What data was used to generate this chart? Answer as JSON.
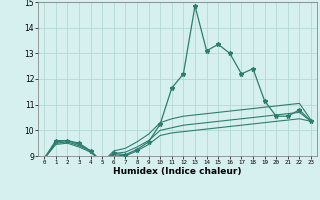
{
  "title": "",
  "xlabel": "Humidex (Indice chaleur)",
  "x_values": [
    0,
    1,
    2,
    3,
    4,
    5,
    6,
    7,
    8,
    9,
    10,
    11,
    12,
    13,
    14,
    15,
    16,
    17,
    18,
    19,
    20,
    21,
    22,
    23
  ],
  "line1": [
    8.9,
    9.6,
    9.6,
    9.5,
    9.2,
    8.75,
    9.1,
    9.05,
    9.25,
    9.55,
    10.25,
    11.65,
    12.2,
    14.85,
    13.1,
    13.35,
    13.0,
    12.2,
    12.4,
    11.15,
    10.55,
    10.55,
    10.8,
    10.35
  ],
  "line2": [
    8.9,
    9.55,
    9.6,
    9.45,
    9.2,
    8.75,
    9.2,
    9.3,
    9.55,
    9.85,
    10.3,
    10.45,
    10.55,
    10.6,
    10.65,
    10.7,
    10.75,
    10.8,
    10.85,
    10.9,
    10.95,
    11.0,
    11.05,
    10.4
  ],
  "line3": [
    8.9,
    9.5,
    9.55,
    9.4,
    9.2,
    8.75,
    9.1,
    9.15,
    9.35,
    9.6,
    10.0,
    10.1,
    10.2,
    10.25,
    10.3,
    10.35,
    10.4,
    10.45,
    10.5,
    10.55,
    10.6,
    10.65,
    10.7,
    10.35
  ],
  "line4": [
    8.9,
    9.45,
    9.5,
    9.35,
    9.15,
    8.75,
    9.05,
    9.0,
    9.2,
    9.45,
    9.8,
    9.9,
    9.95,
    10.0,
    10.05,
    10.1,
    10.15,
    10.2,
    10.25,
    10.3,
    10.35,
    10.4,
    10.45,
    10.35
  ],
  "line_color": "#2d7d6e",
  "bg_color": "#d6f0ef",
  "grid_color": "#afd4d0",
  "ylim": [
    9,
    15
  ],
  "xlim": [
    -0.5,
    23.5
  ]
}
